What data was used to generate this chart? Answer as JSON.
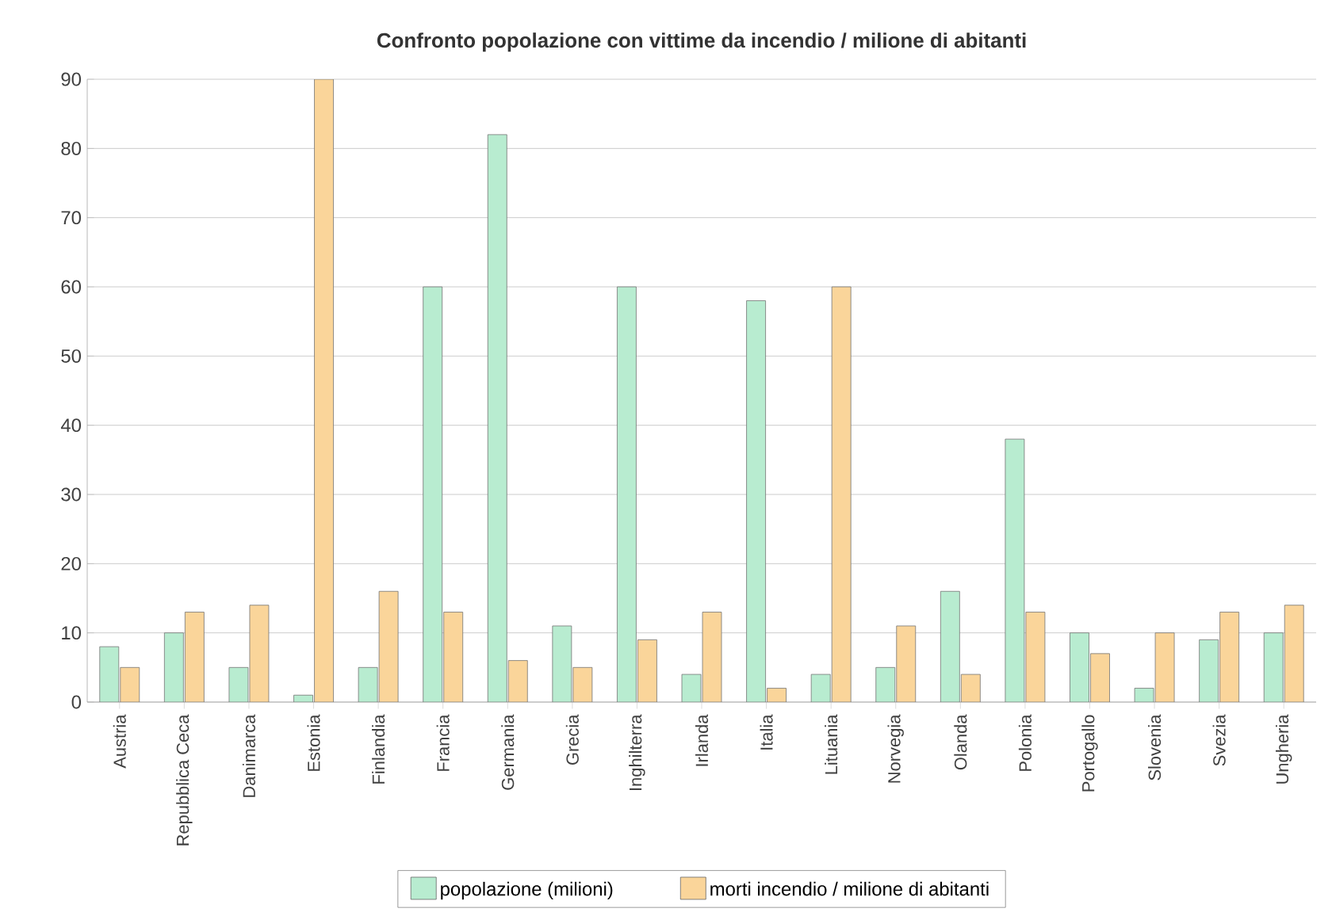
{
  "chart_data": {
    "type": "bar",
    "title": "Confronto popolazione con vittime da incendio / milione di abitanti",
    "categories": [
      "Austria",
      "Repubblica Ceca",
      "Danimarca",
      "Estonia",
      "Finlandia",
      "Francia",
      "Germania",
      "Grecia",
      "Inghilterra",
      "Irlanda",
      "Italia",
      "Lituania",
      "Norvegia",
      "Olanda",
      "Polonia",
      "Portogallo",
      "Slovenia",
      "Svezia",
      "Ungheria"
    ],
    "series": [
      {
        "name": "popolazione (milioni)",
        "color": "#b8ecd0",
        "values": [
          8,
          10,
          5,
          1,
          5,
          60,
          82,
          11,
          60,
          4,
          58,
          4,
          5,
          16,
          38,
          10,
          2,
          9,
          10
        ]
      },
      {
        "name": "morti incendio / milione di abitanti",
        "color": "#fad59a",
        "values": [
          5,
          13,
          14,
          90,
          16,
          13,
          6,
          5,
          9,
          13,
          2,
          60,
          11,
          4,
          13,
          7,
          10,
          13,
          14
        ]
      }
    ],
    "ylim": [
      0,
      90
    ],
    "yticks": [
      0,
      10,
      20,
      30,
      40,
      50,
      60,
      70,
      80,
      90
    ],
    "grid": "y",
    "legend": "bottom"
  }
}
